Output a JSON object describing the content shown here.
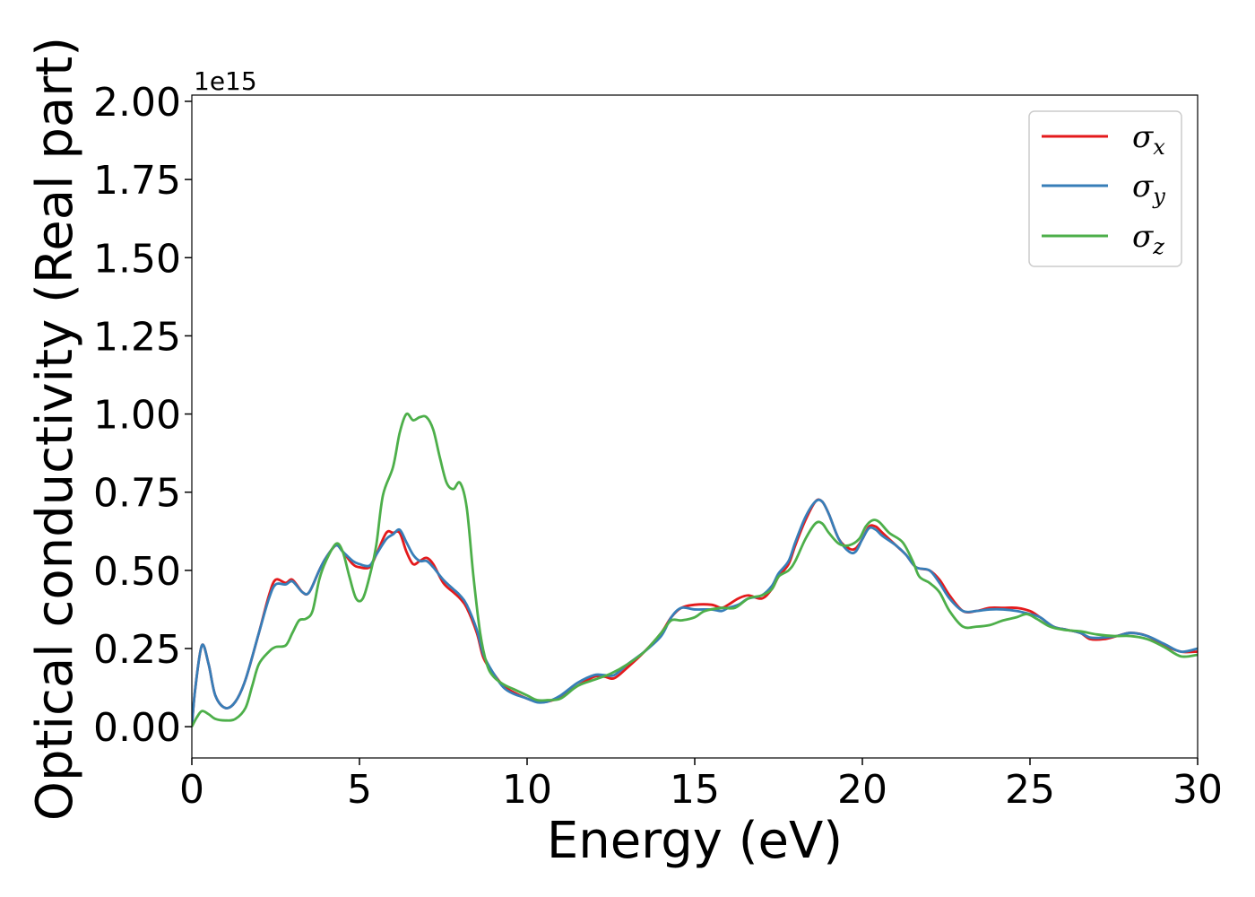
{
  "chart_data": {
    "type": "line",
    "xlabel": "Energy (eV)",
    "ylabel": "Optical conductivity (Real part)",
    "y_offset_label": "1e15",
    "xlim": [
      0,
      30
    ],
    "ylim": [
      -0.1,
      2.02
    ],
    "x_ticks": [
      0,
      5,
      10,
      15,
      20,
      25,
      30
    ],
    "x_tick_labels": [
      "0",
      "5",
      "10",
      "15",
      "20",
      "25",
      "30"
    ],
    "y_ticks": [
      0.0,
      0.25,
      0.5,
      0.75,
      1.0,
      1.25,
      1.5,
      1.75,
      2.0
    ],
    "y_tick_labels": [
      "0.00",
      "0.25",
      "0.50",
      "0.75",
      "1.00",
      "1.25",
      "1.50",
      "1.75",
      "2.00"
    ],
    "grid": false,
    "legend_position": "top-right",
    "series": [
      {
        "name": "σx",
        "legend_symbol": "σ",
        "legend_sub": "x",
        "color": "#e41a1c",
        "points": [
          [
            0,
            0
          ],
          [
            0.1,
            0.12
          ],
          [
            0.3,
            0.26
          ],
          [
            0.5,
            0.2
          ],
          [
            0.7,
            0.1
          ],
          [
            1.0,
            0.06
          ],
          [
            1.3,
            0.08
          ],
          [
            1.6,
            0.15
          ],
          [
            2.0,
            0.3
          ],
          [
            2.3,
            0.42
          ],
          [
            2.5,
            0.47
          ],
          [
            2.8,
            0.46
          ],
          [
            3.0,
            0.47
          ],
          [
            3.3,
            0.43
          ],
          [
            3.5,
            0.43
          ],
          [
            3.8,
            0.5
          ],
          [
            4.0,
            0.54
          ],
          [
            4.3,
            0.58
          ],
          [
            4.5,
            0.56
          ],
          [
            4.8,
            0.52
          ],
          [
            5.0,
            0.51
          ],
          [
            5.3,
            0.51
          ],
          [
            5.5,
            0.55
          ],
          [
            5.8,
            0.62
          ],
          [
            6.0,
            0.62
          ],
          [
            6.2,
            0.62
          ],
          [
            6.4,
            0.56
          ],
          [
            6.6,
            0.52
          ],
          [
            6.8,
            0.53
          ],
          [
            7.0,
            0.54
          ],
          [
            7.2,
            0.52
          ],
          [
            7.5,
            0.46
          ],
          [
            7.8,
            0.43
          ],
          [
            8.0,
            0.41
          ],
          [
            8.2,
            0.38
          ],
          [
            8.5,
            0.3
          ],
          [
            8.7,
            0.22
          ],
          [
            9.0,
            0.17
          ],
          [
            9.3,
            0.13
          ],
          [
            9.6,
            0.11
          ],
          [
            10.0,
            0.09
          ],
          [
            10.3,
            0.08
          ],
          [
            10.6,
            0.08
          ],
          [
            11.0,
            0.095
          ],
          [
            11.5,
            0.13
          ],
          [
            12.0,
            0.16
          ],
          [
            12.3,
            0.16
          ],
          [
            12.6,
            0.155
          ],
          [
            13.0,
            0.19
          ],
          [
            13.5,
            0.24
          ],
          [
            14.0,
            0.3
          ],
          [
            14.3,
            0.35
          ],
          [
            14.6,
            0.38
          ],
          [
            15.0,
            0.39
          ],
          [
            15.5,
            0.39
          ],
          [
            15.8,
            0.38
          ],
          [
            16.0,
            0.39
          ],
          [
            16.3,
            0.41
          ],
          [
            16.6,
            0.42
          ],
          [
            17.0,
            0.41
          ],
          [
            17.3,
            0.44
          ],
          [
            17.5,
            0.48
          ],
          [
            17.8,
            0.52
          ],
          [
            18.0,
            0.58
          ],
          [
            18.3,
            0.66
          ],
          [
            18.6,
            0.72
          ],
          [
            18.8,
            0.72
          ],
          [
            19.0,
            0.68
          ],
          [
            19.3,
            0.6
          ],
          [
            19.6,
            0.57
          ],
          [
            19.8,
            0.57
          ],
          [
            20.0,
            0.6
          ],
          [
            20.2,
            0.64
          ],
          [
            20.4,
            0.64
          ],
          [
            20.6,
            0.62
          ],
          [
            21.0,
            0.58
          ],
          [
            21.3,
            0.55
          ],
          [
            21.6,
            0.51
          ],
          [
            22.0,
            0.5
          ],
          [
            22.3,
            0.47
          ],
          [
            22.6,
            0.42
          ],
          [
            23.0,
            0.37
          ],
          [
            23.4,
            0.37
          ],
          [
            23.8,
            0.38
          ],
          [
            24.2,
            0.38
          ],
          [
            24.6,
            0.38
          ],
          [
            25.0,
            0.37
          ],
          [
            25.3,
            0.35
          ],
          [
            25.7,
            0.32
          ],
          [
            26.1,
            0.31
          ],
          [
            26.5,
            0.3
          ],
          [
            26.8,
            0.28
          ],
          [
            27.2,
            0.28
          ],
          [
            27.6,
            0.29
          ],
          [
            28.0,
            0.3
          ],
          [
            28.5,
            0.29
          ],
          [
            29.0,
            0.26
          ],
          [
            29.5,
            0.24
          ],
          [
            30.0,
            0.24
          ]
        ]
      },
      {
        "name": "σy",
        "legend_symbol": "σ",
        "legend_sub": "y",
        "color": "#377eb8",
        "points": [
          [
            0,
            0
          ],
          [
            0.1,
            0.12
          ],
          [
            0.3,
            0.26
          ],
          [
            0.5,
            0.2
          ],
          [
            0.7,
            0.1
          ],
          [
            1.0,
            0.06
          ],
          [
            1.3,
            0.08
          ],
          [
            1.6,
            0.15
          ],
          [
            2.0,
            0.3
          ],
          [
            2.3,
            0.41
          ],
          [
            2.5,
            0.455
          ],
          [
            2.8,
            0.455
          ],
          [
            3.0,
            0.465
          ],
          [
            3.3,
            0.43
          ],
          [
            3.5,
            0.43
          ],
          [
            3.8,
            0.5
          ],
          [
            4.0,
            0.54
          ],
          [
            4.3,
            0.58
          ],
          [
            4.5,
            0.56
          ],
          [
            4.8,
            0.53
          ],
          [
            5.0,
            0.52
          ],
          [
            5.3,
            0.515
          ],
          [
            5.5,
            0.55
          ],
          [
            5.8,
            0.6
          ],
          [
            6.0,
            0.615
          ],
          [
            6.2,
            0.63
          ],
          [
            6.4,
            0.59
          ],
          [
            6.6,
            0.55
          ],
          [
            6.8,
            0.53
          ],
          [
            7.0,
            0.53
          ],
          [
            7.2,
            0.51
          ],
          [
            7.5,
            0.47
          ],
          [
            7.8,
            0.44
          ],
          [
            8.0,
            0.42
          ],
          [
            8.2,
            0.39
          ],
          [
            8.5,
            0.31
          ],
          [
            8.7,
            0.23
          ],
          [
            9.0,
            0.17
          ],
          [
            9.3,
            0.125
          ],
          [
            9.6,
            0.105
          ],
          [
            10.0,
            0.09
          ],
          [
            10.3,
            0.078
          ],
          [
            10.6,
            0.08
          ],
          [
            11.0,
            0.1
          ],
          [
            11.5,
            0.14
          ],
          [
            12.0,
            0.165
          ],
          [
            12.3,
            0.165
          ],
          [
            12.6,
            0.165
          ],
          [
            13.0,
            0.2
          ],
          [
            13.5,
            0.24
          ],
          [
            14.0,
            0.29
          ],
          [
            14.3,
            0.35
          ],
          [
            14.6,
            0.38
          ],
          [
            15.0,
            0.375
          ],
          [
            15.5,
            0.375
          ],
          [
            15.8,
            0.37
          ],
          [
            16.0,
            0.38
          ],
          [
            16.3,
            0.39
          ],
          [
            16.6,
            0.41
          ],
          [
            17.0,
            0.42
          ],
          [
            17.3,
            0.45
          ],
          [
            17.5,
            0.49
          ],
          [
            17.8,
            0.53
          ],
          [
            18.0,
            0.59
          ],
          [
            18.3,
            0.67
          ],
          [
            18.6,
            0.72
          ],
          [
            18.8,
            0.72
          ],
          [
            19.0,
            0.68
          ],
          [
            19.3,
            0.6
          ],
          [
            19.6,
            0.56
          ],
          [
            19.8,
            0.56
          ],
          [
            20.0,
            0.6
          ],
          [
            20.2,
            0.635
          ],
          [
            20.4,
            0.63
          ],
          [
            20.6,
            0.61
          ],
          [
            21.0,
            0.58
          ],
          [
            21.3,
            0.55
          ],
          [
            21.6,
            0.51
          ],
          [
            22.0,
            0.5
          ],
          [
            22.3,
            0.46
          ],
          [
            22.6,
            0.41
          ],
          [
            23.0,
            0.37
          ],
          [
            23.4,
            0.37
          ],
          [
            23.8,
            0.375
          ],
          [
            24.2,
            0.375
          ],
          [
            24.6,
            0.37
          ],
          [
            25.0,
            0.36
          ],
          [
            25.3,
            0.35
          ],
          [
            25.7,
            0.32
          ],
          [
            26.1,
            0.31
          ],
          [
            26.5,
            0.3
          ],
          [
            26.8,
            0.285
          ],
          [
            27.2,
            0.285
          ],
          [
            27.6,
            0.29
          ],
          [
            28.0,
            0.3
          ],
          [
            28.5,
            0.29
          ],
          [
            29.0,
            0.265
          ],
          [
            29.5,
            0.24
          ],
          [
            30.0,
            0.25
          ]
        ]
      },
      {
        "name": "σz",
        "legend_symbol": "σ",
        "legend_sub": "z",
        "color": "#4daf4a",
        "points": [
          [
            0,
            0
          ],
          [
            0.15,
            0.03
          ],
          [
            0.3,
            0.05
          ],
          [
            0.5,
            0.04
          ],
          [
            0.7,
            0.025
          ],
          [
            1.0,
            0.02
          ],
          [
            1.3,
            0.025
          ],
          [
            1.6,
            0.06
          ],
          [
            1.8,
            0.13
          ],
          [
            2.0,
            0.2
          ],
          [
            2.3,
            0.24
          ],
          [
            2.5,
            0.255
          ],
          [
            2.8,
            0.26
          ],
          [
            3.0,
            0.3
          ],
          [
            3.2,
            0.34
          ],
          [
            3.4,
            0.345
          ],
          [
            3.6,
            0.37
          ],
          [
            3.8,
            0.47
          ],
          [
            4.0,
            0.53
          ],
          [
            4.3,
            0.585
          ],
          [
            4.5,
            0.56
          ],
          [
            4.7,
            0.48
          ],
          [
            4.9,
            0.41
          ],
          [
            5.1,
            0.41
          ],
          [
            5.3,
            0.48
          ],
          [
            5.5,
            0.58
          ],
          [
            5.7,
            0.74
          ],
          [
            6.0,
            0.83
          ],
          [
            6.2,
            0.94
          ],
          [
            6.4,
            1.0
          ],
          [
            6.6,
            0.98
          ],
          [
            6.8,
            0.99
          ],
          [
            7.0,
            0.99
          ],
          [
            7.2,
            0.95
          ],
          [
            7.4,
            0.86
          ],
          [
            7.6,
            0.78
          ],
          [
            7.8,
            0.76
          ],
          [
            8.0,
            0.78
          ],
          [
            8.2,
            0.7
          ],
          [
            8.4,
            0.48
          ],
          [
            8.6,
            0.3
          ],
          [
            8.8,
            0.2
          ],
          [
            9.0,
            0.16
          ],
          [
            9.3,
            0.135
          ],
          [
            9.6,
            0.12
          ],
          [
            10.0,
            0.1
          ],
          [
            10.3,
            0.085
          ],
          [
            10.6,
            0.085
          ],
          [
            11.0,
            0.09
          ],
          [
            11.5,
            0.13
          ],
          [
            12.0,
            0.15
          ],
          [
            12.5,
            0.17
          ],
          [
            13.0,
            0.2
          ],
          [
            13.5,
            0.24
          ],
          [
            14.0,
            0.3
          ],
          [
            14.3,
            0.34
          ],
          [
            14.6,
            0.34
          ],
          [
            15.0,
            0.35
          ],
          [
            15.3,
            0.37
          ],
          [
            15.8,
            0.38
          ],
          [
            16.2,
            0.38
          ],
          [
            16.6,
            0.41
          ],
          [
            17.0,
            0.42
          ],
          [
            17.3,
            0.44
          ],
          [
            17.5,
            0.48
          ],
          [
            17.8,
            0.5
          ],
          [
            18.0,
            0.53
          ],
          [
            18.3,
            0.6
          ],
          [
            18.6,
            0.65
          ],
          [
            18.8,
            0.65
          ],
          [
            19.0,
            0.62
          ],
          [
            19.3,
            0.585
          ],
          [
            19.6,
            0.58
          ],
          [
            19.9,
            0.6
          ],
          [
            20.1,
            0.64
          ],
          [
            20.3,
            0.66
          ],
          [
            20.5,
            0.655
          ],
          [
            20.8,
            0.62
          ],
          [
            21.2,
            0.59
          ],
          [
            21.5,
            0.53
          ],
          [
            21.7,
            0.48
          ],
          [
            22.0,
            0.46
          ],
          [
            22.3,
            0.43
          ],
          [
            22.6,
            0.37
          ],
          [
            23.0,
            0.32
          ],
          [
            23.4,
            0.32
          ],
          [
            23.8,
            0.325
          ],
          [
            24.2,
            0.34
          ],
          [
            24.6,
            0.35
          ],
          [
            24.9,
            0.36
          ],
          [
            25.2,
            0.345
          ],
          [
            25.6,
            0.32
          ],
          [
            26.0,
            0.31
          ],
          [
            26.5,
            0.305
          ],
          [
            27.0,
            0.295
          ],
          [
            27.5,
            0.29
          ],
          [
            28.0,
            0.29
          ],
          [
            28.5,
            0.28
          ],
          [
            29.0,
            0.255
          ],
          [
            29.5,
            0.225
          ],
          [
            30.0,
            0.23
          ]
        ]
      }
    ]
  }
}
